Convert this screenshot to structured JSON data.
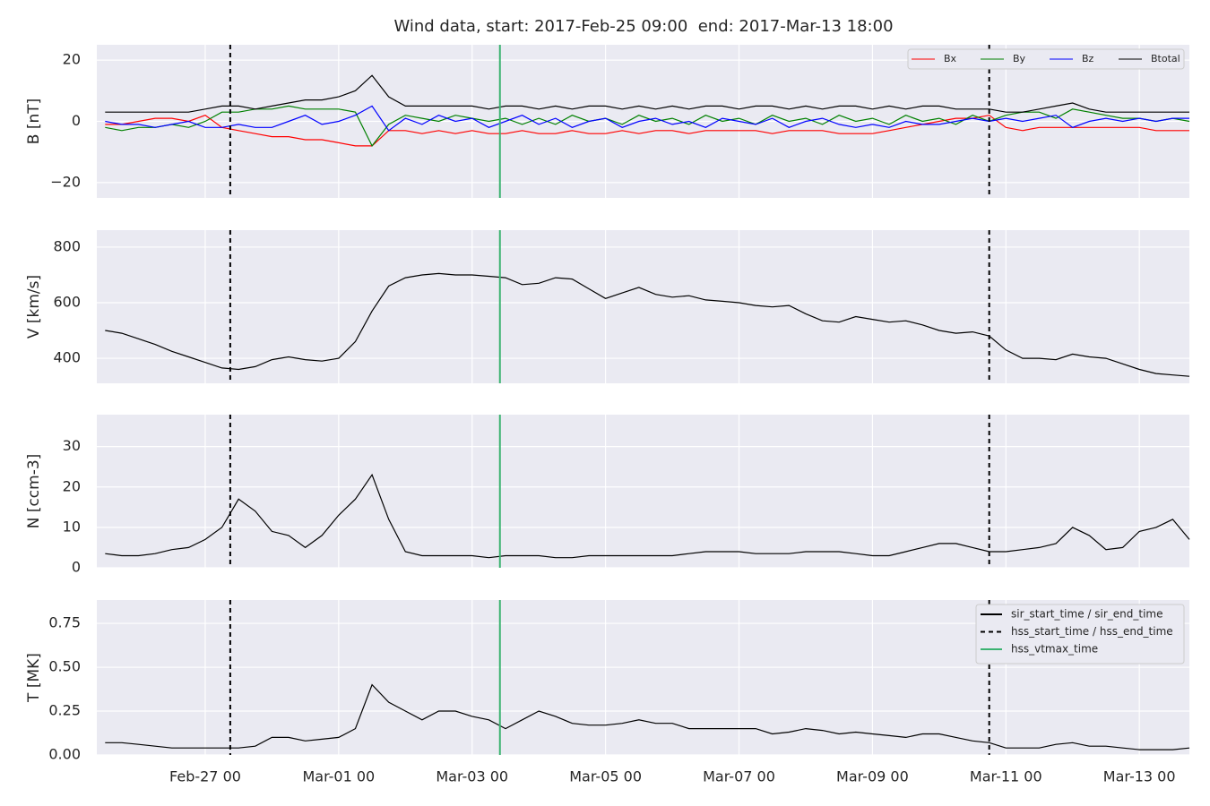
{
  "title": "Wind data, start: 2017-Feb-25 09:00  end: 2017-Mar-13 18:00",
  "time": {
    "xlim": [
      "Feb-25 09",
      "Mar-13 18"
    ],
    "xticks": [
      "Feb-27 00",
      "Mar-01 00",
      "Mar-03 00",
      "Mar-05 00",
      "Mar-07 00",
      "Mar-09 00",
      "Mar-11 00",
      "Mar-13 00"
    ],
    "x": [
      "Feb-25 12",
      "Feb-25 18",
      "Feb-26 00",
      "Feb-26 06",
      "Feb-26 12",
      "Feb-26 18",
      "Feb-27 00",
      "Feb-27 06",
      "Feb-27 12",
      "Feb-27 18",
      "Feb-28 00",
      "Feb-28 06",
      "Feb-28 12",
      "Feb-28 18",
      "Mar-01 00",
      "Mar-01 06",
      "Mar-01 12",
      "Mar-01 18",
      "Mar-02 00",
      "Mar-02 06",
      "Mar-02 12",
      "Mar-02 18",
      "Mar-03 00",
      "Mar-03 06",
      "Mar-03 12",
      "Mar-03 18",
      "Mar-04 00",
      "Mar-04 06",
      "Mar-04 12",
      "Mar-04 18",
      "Mar-05 00",
      "Mar-05 06",
      "Mar-05 12",
      "Mar-05 18",
      "Mar-06 00",
      "Mar-06 06",
      "Mar-06 12",
      "Mar-06 18",
      "Mar-07 00",
      "Mar-07 06",
      "Mar-07 12",
      "Mar-07 18",
      "Mar-08 00",
      "Mar-08 06",
      "Mar-08 12",
      "Mar-08 18",
      "Mar-09 00",
      "Mar-09 06",
      "Mar-09 12",
      "Mar-09 18",
      "Mar-10 00",
      "Mar-10 06",
      "Mar-10 12",
      "Mar-10 18",
      "Mar-11 00",
      "Mar-11 06",
      "Mar-11 12",
      "Mar-11 18",
      "Mar-12 00",
      "Mar-12 06",
      "Mar-12 12",
      "Mar-12 18",
      "Mar-13 00",
      "Mar-13 06",
      "Mar-13 12",
      "Mar-13 18"
    ]
  },
  "chart_data": [
    {
      "type": "line",
      "ylabel": "B [nT]",
      "ylim": [
        -25,
        25
      ],
      "yticks": [
        {
          "value": -20,
          "label": "−20"
        },
        0,
        20
      ],
      "grid": true,
      "legend": "upper right",
      "series": [
        {
          "name": "Bx",
          "color": "#ff0000",
          "values": [
            -1,
            -1,
            0,
            1,
            1,
            0,
            2,
            -2,
            -3,
            -4,
            -5,
            -5,
            -6,
            -6,
            -7,
            -8,
            -8,
            -3,
            -3,
            -4,
            -3,
            -4,
            -3,
            -4,
            -4,
            -3,
            -4,
            -4,
            -3,
            -4,
            -4,
            -3,
            -4,
            -3,
            -3,
            -4,
            -3,
            -3,
            -3,
            -3,
            -4,
            -3,
            -3,
            -3,
            -4,
            -4,
            -4,
            -3,
            -2,
            -1,
            0,
            1,
            1,
            2,
            -2,
            -3,
            -2,
            -2,
            -2,
            -2,
            -2,
            -2,
            -2,
            -3,
            -3,
            -3
          ]
        },
        {
          "name": "By",
          "color": "#008000",
          "values": [
            -2,
            -3,
            -2,
            -2,
            -1,
            -2,
            0,
            3,
            3,
            4,
            4,
            5,
            4,
            4,
            4,
            3,
            -8,
            -1,
            2,
            1,
            0,
            2,
            1,
            0,
            1,
            -1,
            1,
            -1,
            2,
            0,
            1,
            -1,
            2,
            0,
            1,
            -1,
            2,
            0,
            1,
            -1,
            2,
            0,
            1,
            -1,
            2,
            0,
            1,
            -1,
            2,
            0,
            1,
            -1,
            2,
            0,
            2,
            3,
            3,
            1,
            4,
            3,
            2,
            1,
            1,
            0,
            1,
            0
          ]
        },
        {
          "name": "Bz",
          "color": "#0000ff",
          "values": [
            0,
            -1,
            -1,
            -2,
            -1,
            0,
            -2,
            -2,
            -1,
            -2,
            -2,
            0,
            2,
            -1,
            0,
            2,
            5,
            -3,
            1,
            -1,
            2,
            0,
            1,
            -2,
            0,
            2,
            -1,
            1,
            -2,
            0,
            1,
            -2,
            0,
            1,
            -1,
            0,
            -2,
            1,
            0,
            -1,
            1,
            -2,
            0,
            1,
            -1,
            -2,
            -1,
            -2,
            0,
            -1,
            -1,
            0,
            1,
            0,
            1,
            0,
            1,
            2,
            -2,
            0,
            1,
            0,
            1,
            0,
            1,
            1
          ]
        },
        {
          "name": "Btotal",
          "color": "#000000",
          "values": [
            3,
            3,
            3,
            3,
            3,
            3,
            4,
            5,
            5,
            4,
            5,
            6,
            7,
            7,
            8,
            10,
            15,
            8,
            5,
            5,
            5,
            5,
            5,
            4,
            5,
            5,
            4,
            5,
            4,
            5,
            5,
            4,
            5,
            4,
            5,
            4,
            5,
            5,
            4,
            5,
            5,
            4,
            5,
            4,
            5,
            5,
            4,
            5,
            4,
            5,
            5,
            4,
            4,
            4,
            3,
            3,
            4,
            5,
            6,
            4,
            3,
            3,
            3,
            3,
            3,
            3
          ]
        }
      ]
    },
    {
      "type": "line",
      "ylabel": "V [km/s]",
      "ylim": [
        310,
        861
      ],
      "yticks": [
        400,
        600,
        800
      ],
      "grid": true,
      "series": [
        {
          "name": "V",
          "color": "#000000",
          "values": [
            500,
            490,
            470,
            450,
            425,
            405,
            385,
            365,
            360,
            370,
            395,
            405,
            395,
            390,
            400,
            460,
            570,
            660,
            690,
            700,
            705,
            700,
            700,
            695,
            690,
            665,
            670,
            690,
            685,
            650,
            615,
            635,
            655,
            630,
            620,
            625,
            610,
            605,
            600,
            590,
            585,
            590,
            560,
            535,
            530,
            550,
            540,
            530,
            535,
            520,
            500,
            490,
            495,
            480,
            430,
            400,
            400,
            395,
            415,
            405,
            400,
            380,
            360,
            345,
            340,
            335
          ]
        }
      ]
    },
    {
      "type": "line",
      "ylabel": "N [ccm-3]",
      "ylim": [
        0,
        37.9
      ],
      "yticks": [
        0,
        10,
        20,
        30
      ],
      "grid": true,
      "series": [
        {
          "name": "N",
          "color": "#000000",
          "values": [
            3.5,
            3,
            3,
            3.5,
            4.5,
            5,
            7,
            10,
            17,
            14,
            9,
            8,
            5,
            8,
            13,
            17,
            23,
            12,
            4,
            3,
            3,
            3,
            3,
            2.5,
            3,
            3,
            3,
            2.5,
            2.5,
            3,
            3,
            3,
            3,
            3,
            3,
            3.5,
            4,
            4,
            4,
            3.5,
            3.5,
            3.5,
            4,
            4,
            4,
            3.5,
            3,
            3,
            4,
            5,
            6,
            6,
            5,
            4,
            4,
            4.5,
            5,
            6,
            10,
            8,
            4.5,
            5,
            9,
            10,
            12,
            7
          ]
        }
      ]
    },
    {
      "type": "line",
      "ylabel": "T [MK]",
      "ylim": [
        0,
        0.883
      ],
      "yticks": [
        {
          "value": 0,
          "label": "0.00"
        },
        {
          "value": 0.25,
          "label": "0.25"
        },
        {
          "value": 0.5,
          "label": "0.50"
        },
        {
          "value": 0.75,
          "label": "0.75"
        }
      ],
      "grid": true,
      "legend": "upper right",
      "series": [
        {
          "name": "T",
          "color": "#000000",
          "values": [
            0.07,
            0.07,
            0.06,
            0.05,
            0.04,
            0.04,
            0.04,
            0.04,
            0.04,
            0.05,
            0.1,
            0.1,
            0.08,
            0.09,
            0.1,
            0.15,
            0.4,
            0.3,
            0.25,
            0.2,
            0.25,
            0.25,
            0.22,
            0.2,
            0.15,
            0.2,
            0.25,
            0.22,
            0.18,
            0.17,
            0.17,
            0.18,
            0.2,
            0.18,
            0.18,
            0.15,
            0.15,
            0.15,
            0.15,
            0.15,
            0.12,
            0.13,
            0.15,
            0.14,
            0.12,
            0.13,
            0.12,
            0.11,
            0.1,
            0.12,
            0.12,
            0.1,
            0.08,
            0.07,
            0.04,
            0.04,
            0.04,
            0.06,
            0.07,
            0.05,
            0.05,
            0.04,
            0.03,
            0.03,
            0.03,
            0.04
          ]
        }
      ],
      "events": [
        {
          "name": "sir_start_time / sir_end_time",
          "color": "#000000",
          "style": "solid"
        },
        {
          "name": "hss_start_time / hss_end_time",
          "color": "#000000",
          "style": "dashed",
          "x": [
            "Feb-27 09",
            "Mar-10 18"
          ]
        },
        {
          "name": "hss_vtmax_time",
          "color": "#3cb371",
          "style": "solid",
          "x": [
            "Mar-03 10"
          ]
        }
      ]
    }
  ]
}
